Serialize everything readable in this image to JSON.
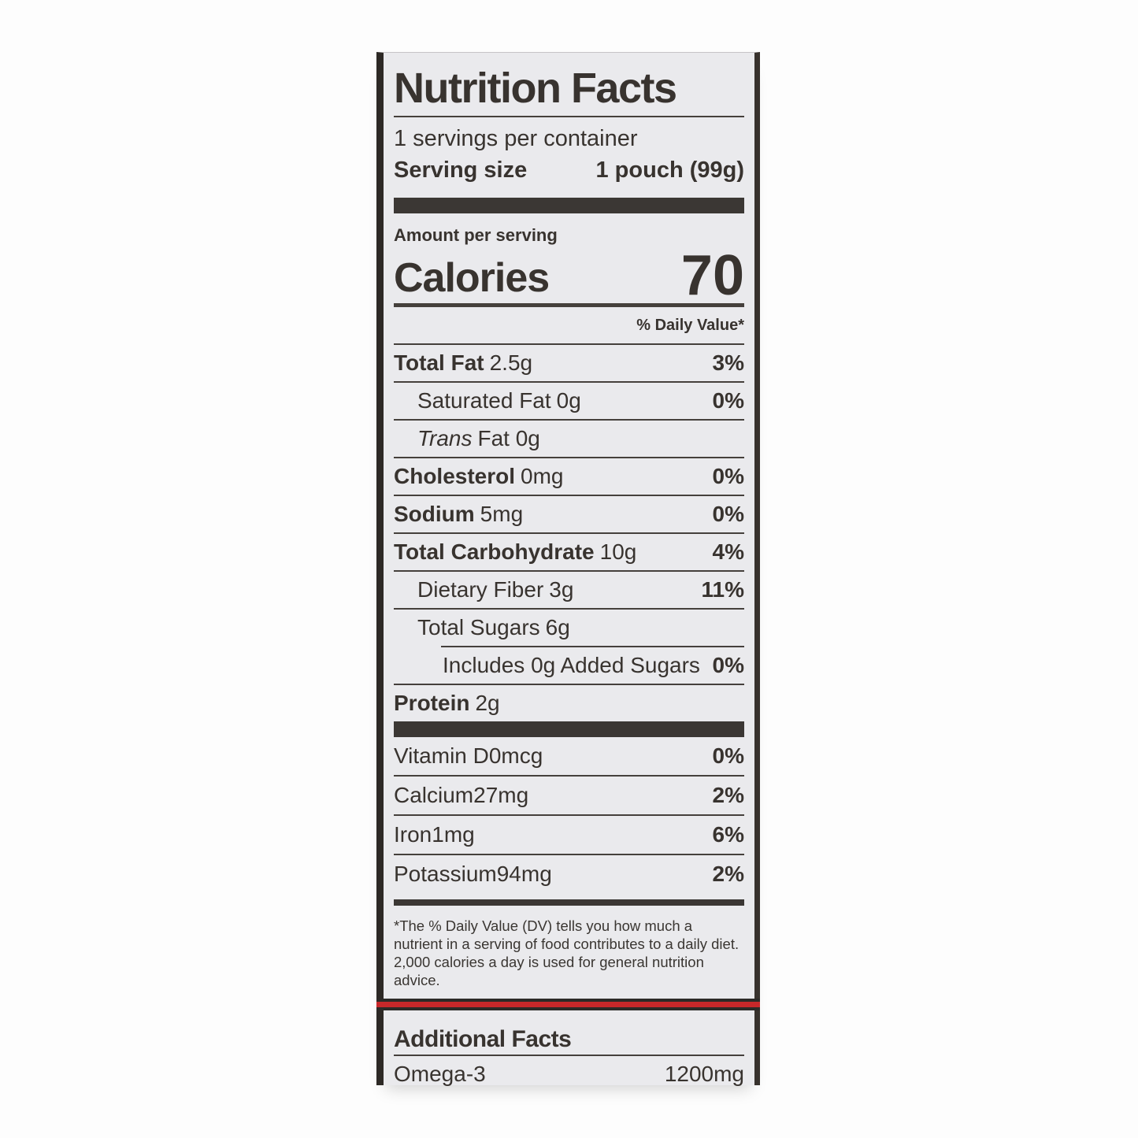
{
  "label": {
    "title": "Nutrition Facts",
    "servings_per_container": "1 servings per container",
    "serving_size_label": "Serving size",
    "serving_size_value": "1 pouch (99g)",
    "amount_per_serving": "Amount per serving",
    "calories_label": "Calories",
    "calories_value": "70",
    "daily_value_header": "% Daily Value*",
    "nutrients": [
      {
        "name": "Total Fat",
        "amount": "2.5g",
        "dv": "3%"
      },
      {
        "name": "Saturated Fat",
        "amount": "0g",
        "dv": "0%"
      },
      {
        "name": "Trans",
        "amount": "Fat 0g",
        "dv": ""
      },
      {
        "name": "Cholesterol",
        "amount": "0mg",
        "dv": "0%"
      },
      {
        "name": "Sodium",
        "amount": "5mg",
        "dv": "0%"
      },
      {
        "name": "Total Carbohydrate",
        "amount": "10g",
        "dv": "4%"
      },
      {
        "name": "Dietary Fiber",
        "amount": "3g",
        "dv": "11%"
      },
      {
        "name": "Total Sugars",
        "amount": "6g",
        "dv": ""
      },
      {
        "name": "Includes 0g Added Sugars",
        "amount": "",
        "dv": "0%"
      },
      {
        "name": "Protein",
        "amount": "2g",
        "dv": ""
      }
    ],
    "vitamins": [
      {
        "name": "Vitamin D",
        "amount": "0mcg",
        "dv": "0%"
      },
      {
        "name": "Calcium",
        "amount": "27mg",
        "dv": "2%"
      },
      {
        "name": "Iron",
        "amount": "1mg",
        "dv": "6%"
      },
      {
        "name": "Potassium",
        "amount": "94mg",
        "dv": "2%"
      }
    ],
    "footnote": "*The % Daily Value (DV) tells you how much a nutrient in a serving of food contributes to a daily diet. 2,000 calories a day is used for general nutrition advice.",
    "additional": {
      "title": "Additional Facts",
      "rows": [
        {
          "name": "Omega-3",
          "value": "1200mg"
        }
      ]
    },
    "colors": {
      "accent_red": "#c8282a",
      "ink": "#38332f",
      "label_background": "#eaeaed"
    }
  }
}
